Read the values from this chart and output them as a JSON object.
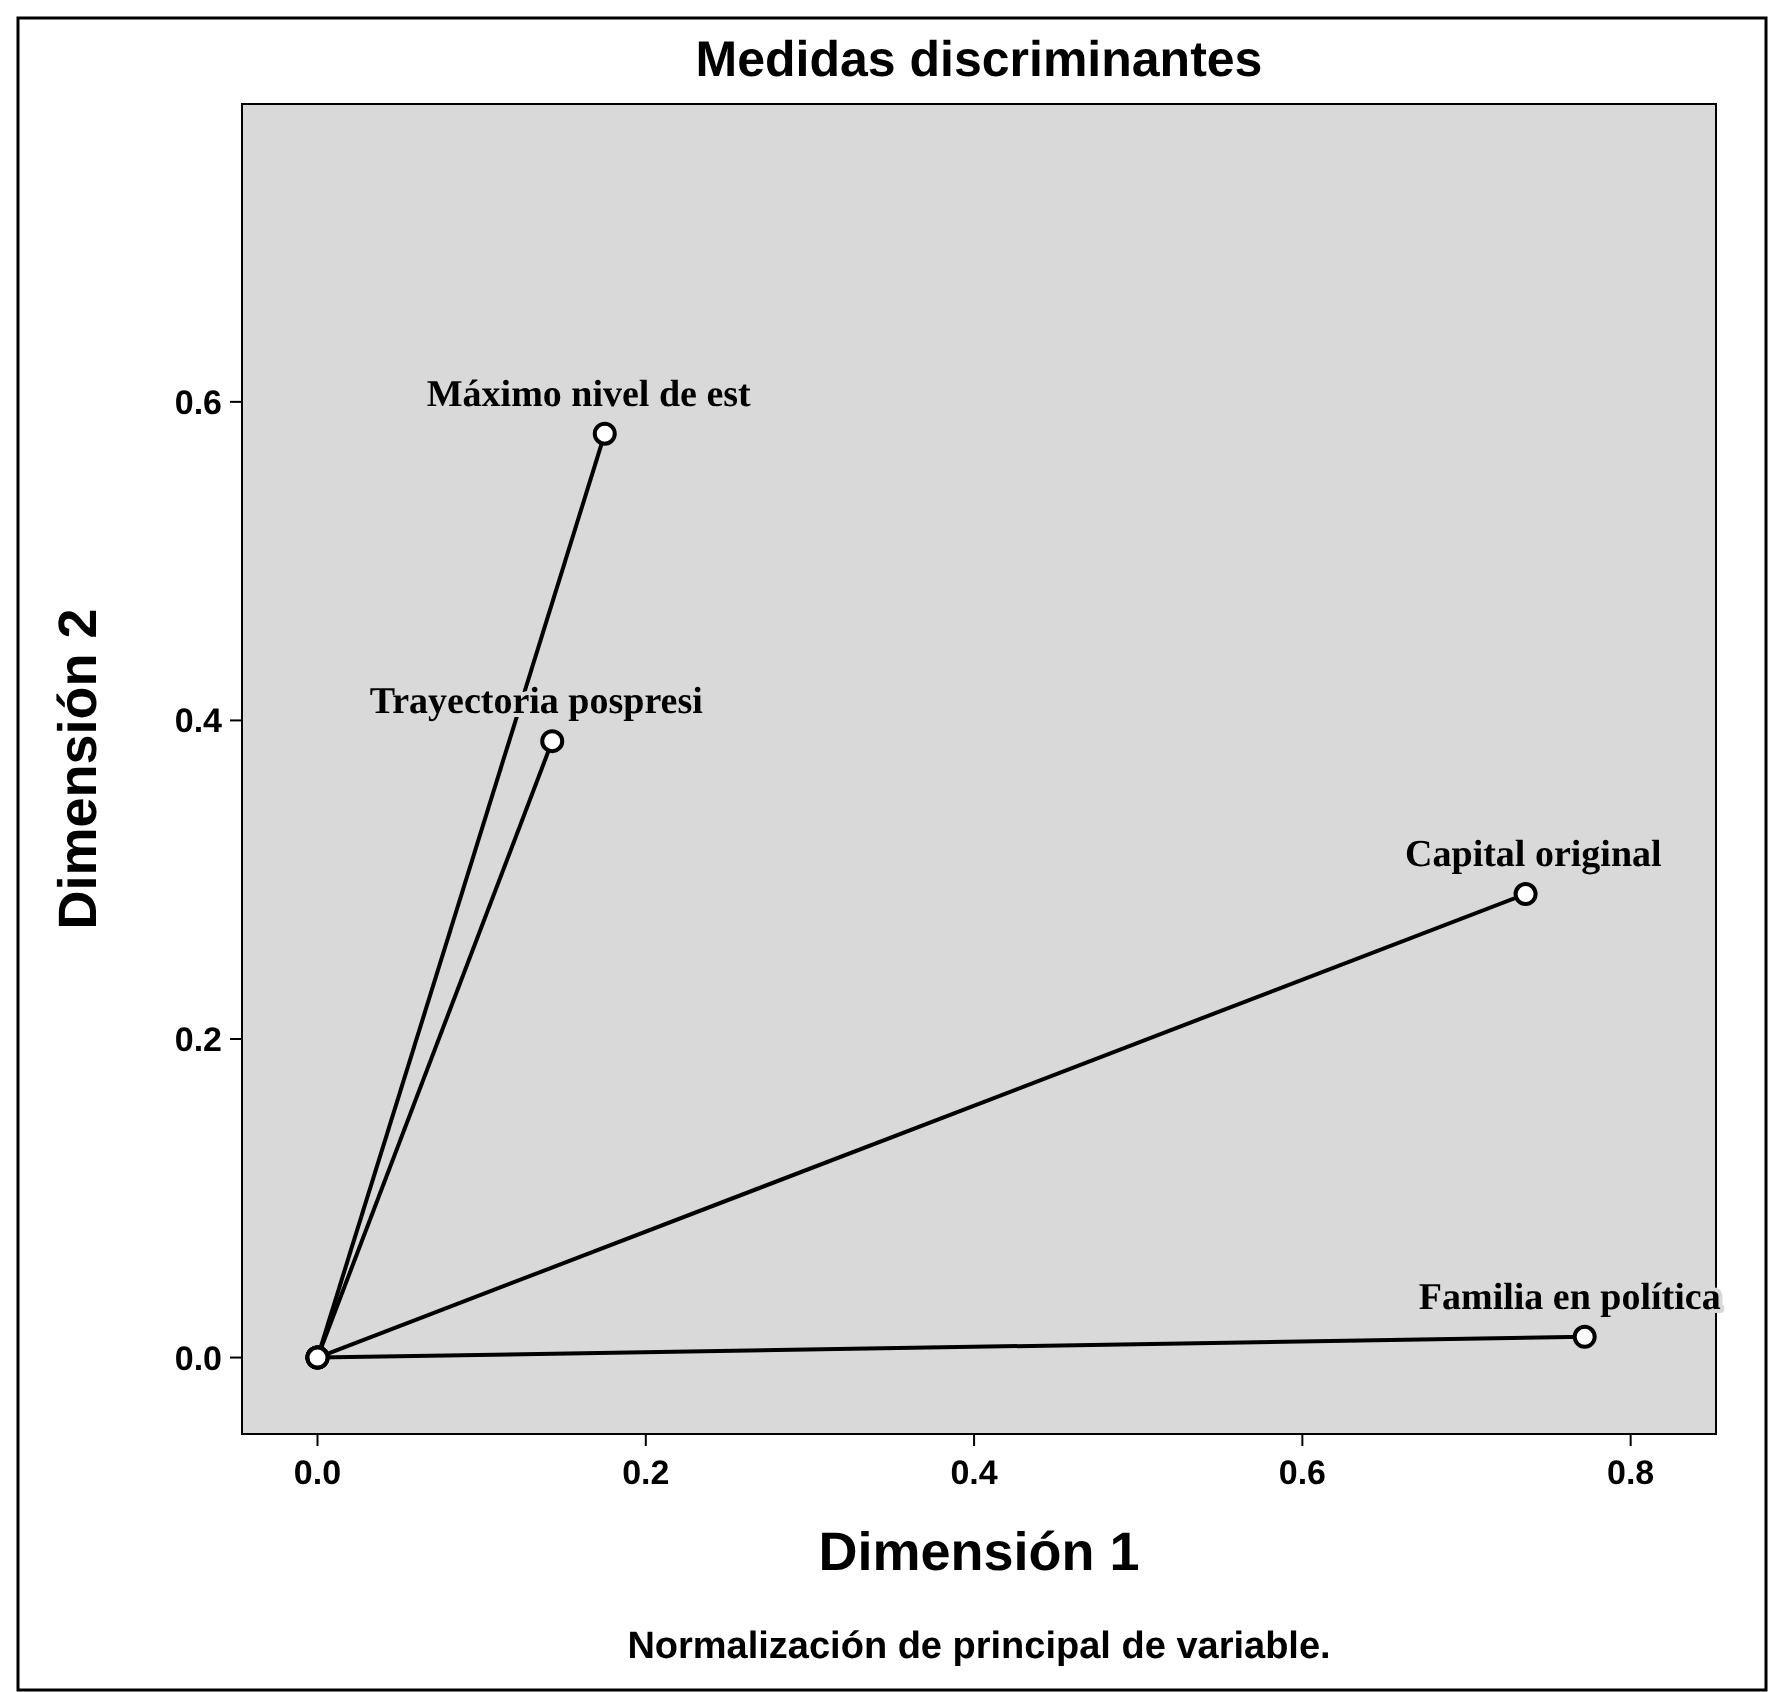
{
  "chart_data": {
    "type": "line",
    "title": "Medidas discriminantes",
    "xlabel": "Dimensión 1",
    "ylabel": "Dimensión 2",
    "annotations": [
      "Normalización de principal de variable."
    ],
    "series": [
      {
        "name": "Máximo nivel de est",
        "color": "#000000",
        "x": [
          0,
          0.175
        ],
        "values": [
          0,
          0.58
        ]
      },
      {
        "name": "Trayectoria pospresi",
        "color": "#000000",
        "x": [
          0,
          0.143
        ],
        "values": [
          0,
          0.387
        ]
      },
      {
        "name": "Capital original",
        "color": "#000000",
        "x": [
          0,
          0.736
        ],
        "values": [
          0,
          0.291
        ]
      },
      {
        "name": "Familia en política",
        "color": "#000000",
        "x": [
          0,
          0.772
        ],
        "values": [
          0,
          0.013
        ]
      }
    ],
    "xlim": [
      -0.046,
      0.852
    ],
    "ylim": [
      -0.048,
      0.787
    ],
    "xticks": [
      {
        "value": 0,
        "label": "0.0"
      },
      {
        "value": 0.2,
        "label": "0.2"
      },
      {
        "value": 0.4,
        "label": "0.4"
      },
      {
        "value": 0.6,
        "label": "0.6"
      },
      {
        "value": 0.8,
        "label": "0.8"
      }
    ],
    "yticks": [
      {
        "value": 0,
        "label": "0.0"
      },
      {
        "value": 0.2,
        "label": "0.2"
      },
      {
        "value": 0.4,
        "label": "0.4"
      },
      {
        "value": 0.6,
        "label": "0.6"
      }
    ],
    "marker": "circle",
    "line_style": "solid",
    "grid": false
  }
}
